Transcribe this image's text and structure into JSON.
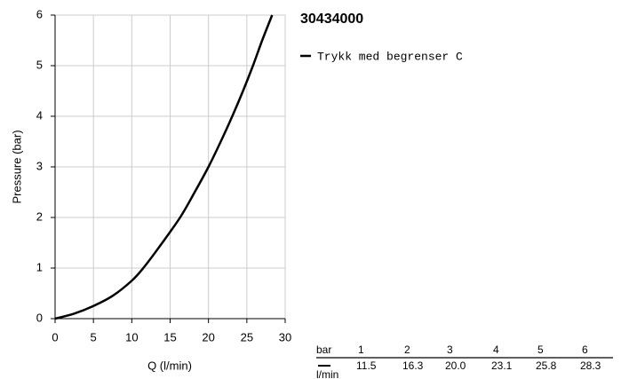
{
  "chart_data": {
    "type": "line",
    "title": "30434000",
    "x_label": "Q (l/min)",
    "y_label": "Pressure (bar)",
    "x": [
      0,
      2.5,
      5,
      7.5,
      10,
      11.5,
      13.5,
      16.3,
      18.2,
      20,
      21.6,
      23.1,
      24.5,
      25.8,
      27,
      28.3
    ],
    "series": [
      {
        "name": "Trykk med begrenser C",
        "color": "#000000",
        "values": [
          0,
          0.1,
          0.25,
          0.45,
          0.75,
          1,
          1.4,
          2,
          2.5,
          3,
          3.5,
          4,
          4.5,
          5,
          5.5,
          6
        ]
      }
    ],
    "xlim": [
      0,
      30
    ],
    "xticks": [
      0,
      5,
      10,
      15,
      20,
      25,
      30
    ],
    "ylim": [
      0,
      6
    ],
    "yticks": [
      0,
      1,
      2,
      3,
      4,
      5,
      6
    ],
    "grid": true
  },
  "table": {
    "row_header": "bar",
    "unit": "l/min",
    "pressures": [
      "1",
      "2",
      "3",
      "4",
      "5",
      "6"
    ],
    "flows": [
      "11.5",
      "16.3",
      "20.0",
      "23.1",
      "25.8",
      "28.3"
    ]
  }
}
